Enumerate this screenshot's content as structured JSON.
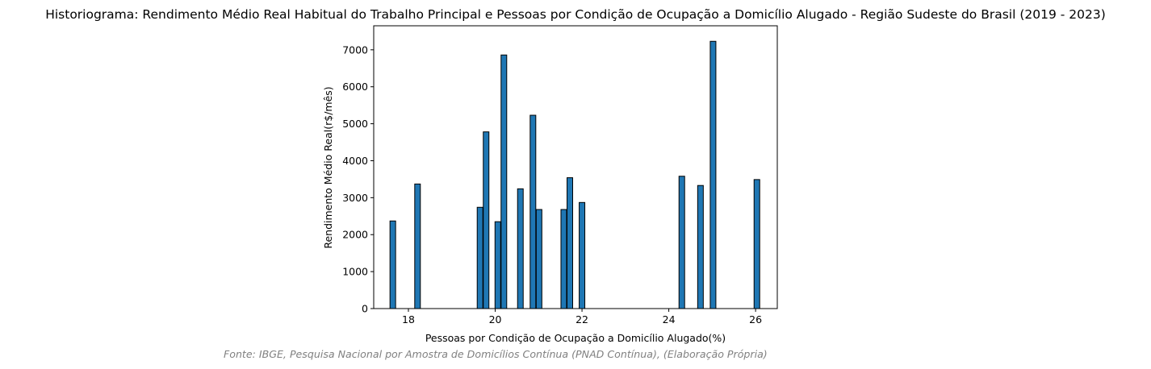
{
  "chart_data": {
    "type": "bar",
    "title": "Historiograma: Rendimento Médio Real Habitual do Trabalho Principal e Pessoas por Condição de Ocupação a Domicílio Alugado - Região Sudeste do Brasil (2019 - 2023)",
    "xlabel": "Pessoas por Condição de Ocupação a Domicílio Alugado(%)",
    "ylabel": "Rendimento Médio Real(r$/mês)",
    "source": "Fonte: IBGE, Pesquisa Nacional por Amostra de Domicílios Contínua (PNAD Contínua), (Elaboração Própria)",
    "xlim": [
      17.2,
      26.5
    ],
    "ylim": [
      0,
      7650
    ],
    "xticks": [
      18,
      20,
      22,
      24,
      26
    ],
    "yticks": [
      0,
      1000,
      2000,
      3000,
      4000,
      5000,
      6000,
      7000
    ],
    "bar_width": 0.13,
    "bar_color": "#1f77b4",
    "bar_edge_color": "#000000",
    "grid": false,
    "points": [
      {
        "x": 17.64,
        "y": 2370
      },
      {
        "x": 18.21,
        "y": 3370
      },
      {
        "x": 19.65,
        "y": 2740
      },
      {
        "x": 19.79,
        "y": 4780
      },
      {
        "x": 20.06,
        "y": 2350
      },
      {
        "x": 20.2,
        "y": 6860
      },
      {
        "x": 20.58,
        "y": 3240
      },
      {
        "x": 20.87,
        "y": 5230
      },
      {
        "x": 21.01,
        "y": 2680
      },
      {
        "x": 21.58,
        "y": 2680
      },
      {
        "x": 21.72,
        "y": 3540
      },
      {
        "x": 22.0,
        "y": 2870
      },
      {
        "x": 24.3,
        "y": 3580
      },
      {
        "x": 24.73,
        "y": 3330
      },
      {
        "x": 25.02,
        "y": 7230
      },
      {
        "x": 26.03,
        "y": 3490
      }
    ]
  }
}
